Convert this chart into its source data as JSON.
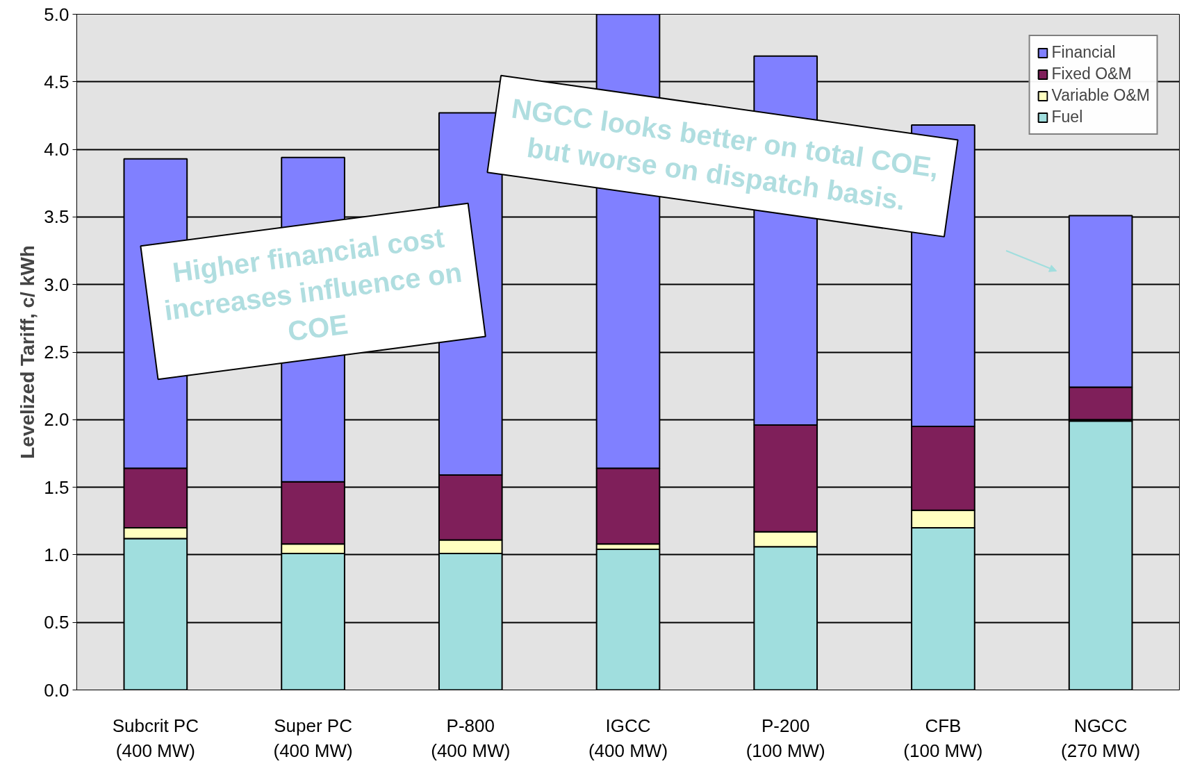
{
  "chart_data": {
    "type": "bar",
    "stacked": true,
    "ylabel": "Levelized Tariff, c/ kWh",
    "categories": [
      "Subcrit PC\n(400 MW)",
      "Super PC\n(400 MW)",
      "P-800\n(400 MW)",
      "IGCC\n(400 MW)",
      "P-200\n(100 MW)",
      "CFB\n(100 MW)",
      "NGCC\n(270 MW)"
    ],
    "series": [
      {
        "name": "Fuel",
        "color": "#a0dede",
        "values": [
          1.12,
          1.01,
          1.01,
          1.04,
          1.06,
          1.2,
          1.99
        ]
      },
      {
        "name": "Variable O&M",
        "color": "#ffffc0",
        "values": [
          0.08,
          0.07,
          0.1,
          0.04,
          0.11,
          0.13,
          0.01
        ]
      },
      {
        "name": "Fixed O&M",
        "color": "#7f1f5a",
        "values": [
          0.44,
          0.46,
          0.48,
          0.56,
          0.79,
          0.62,
          0.24
        ]
      },
      {
        "name": "Financial",
        "color": "#8080ff",
        "values": [
          2.29,
          2.4,
          2.68,
          3.36,
          2.73,
          2.23,
          1.27
        ]
      }
    ],
    "ylim": [
      0,
      5
    ],
    "yticks": [
      {
        "value": 0,
        "label": "0.0"
      },
      {
        "value": 0.5,
        "label": "0.5"
      },
      {
        "value": 1,
        "label": "1.0"
      },
      {
        "value": 1.5,
        "label": "1.5"
      },
      {
        "value": 2,
        "label": "2.0"
      },
      {
        "value": 2.5,
        "label": "2.5"
      },
      {
        "value": 3,
        "label": "3.0"
      },
      {
        "value": 3.5,
        "label": "3.5"
      },
      {
        "value": 4,
        "label": "4.0"
      },
      {
        "value": 4.5,
        "label": "4.5"
      },
      {
        "value": 5,
        "label": "5.0"
      }
    ],
    "grid": "y",
    "legend": "top right",
    "annotations": [
      "Higher financial cost\nincreases influence on\nCOE",
      "NGCC looks better on total COE,\nbut  worse on dispatch basis."
    ]
  }
}
